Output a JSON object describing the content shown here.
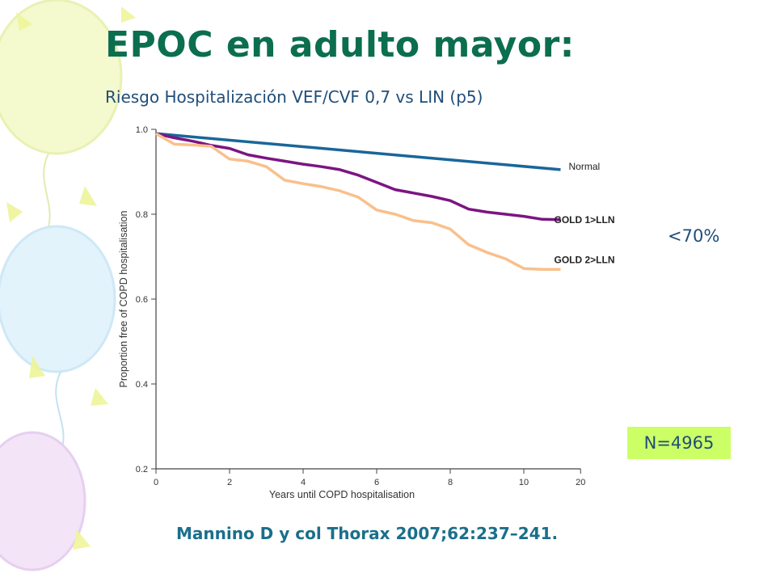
{
  "slide": {
    "title": "EPOC en adulto mayor:",
    "subtitle": "Riesgo Hospitalización VEF/CVF 0,7 vs LIN (p5)",
    "annotation_pct": "<70%",
    "annotation_n": "N=4965",
    "citation": "Mannino D y col Thorax 2007;62:237–241."
  },
  "chart_data": {
    "type": "line",
    "xlabel": "Years until COPD hospitalisation",
    "ylabel": "Proportion free of COPD hospitalisation",
    "xlim": [
      0,
      20
    ],
    "ylim": [
      0.2,
      1.0
    ],
    "xticks": [
      0,
      2,
      4,
      6,
      8,
      10,
      20
    ],
    "yticks": [
      0.2,
      0.4,
      0.6,
      0.8,
      1.0
    ],
    "grid": false,
    "series": [
      {
        "name": "Normal",
        "color": "#1a6699",
        "x": [
          0,
          11
        ],
        "y": [
          0.99,
          0.905
        ]
      },
      {
        "name": "GOLD 1>LLN",
        "color": "#7b1582",
        "x": [
          0,
          0.5,
          1,
          1.5,
          2,
          2.5,
          3,
          3.5,
          4,
          4.5,
          5,
          5.5,
          6,
          6.5,
          7,
          7.5,
          8,
          8.5,
          9,
          9.5,
          10,
          10.5,
          11
        ],
        "y": [
          0.99,
          0.98,
          0.972,
          0.962,
          0.955,
          0.94,
          0.932,
          0.925,
          0.918,
          0.912,
          0.905,
          0.892,
          0.875,
          0.858,
          0.85,
          0.842,
          0.832,
          0.812,
          0.805,
          0.8,
          0.795,
          0.788,
          0.787
        ]
      },
      {
        "name": "GOLD 2>LLN",
        "color": "#f9c08b",
        "x": [
          0,
          0.5,
          1,
          1.5,
          2,
          2.5,
          3,
          3.5,
          4,
          4.5,
          5,
          5.5,
          6,
          6.5,
          7,
          7.5,
          8,
          8.5,
          9,
          9.5,
          10,
          10.5,
          11
        ],
        "y": [
          0.99,
          0.965,
          0.963,
          0.96,
          0.93,
          0.925,
          0.912,
          0.88,
          0.872,
          0.865,
          0.855,
          0.84,
          0.81,
          0.8,
          0.785,
          0.78,
          0.765,
          0.728,
          0.71,
          0.695,
          0.672,
          0.67,
          0.67
        ]
      }
    ]
  }
}
